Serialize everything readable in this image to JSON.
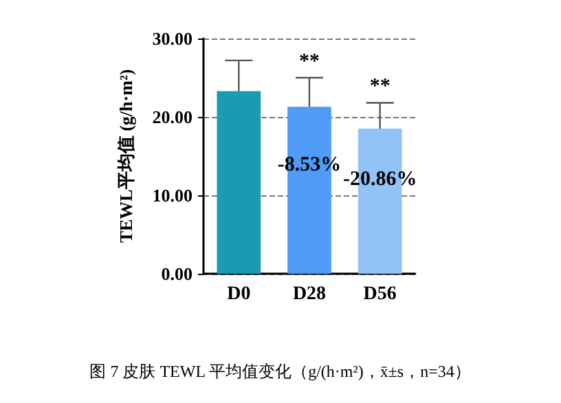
{
  "chart_data": {
    "type": "bar",
    "ylabel": "TEWL平均值 (g/h·m²)",
    "categories": [
      "D0",
      "D28",
      "D56"
    ],
    "values": [
      23.3,
      21.3,
      18.5
    ],
    "colors": [
      "#1a9bb1",
      "#4f9bf7",
      "#93c2f6"
    ],
    "errors": [
      3.9,
      3.7,
      3.3
    ],
    "ylim": [
      0,
      30
    ],
    "yticks": [
      {
        "value": 0,
        "label": "0.00"
      },
      {
        "value": 10,
        "label": "10.00"
      },
      {
        "value": 20,
        "label": "20.00"
      },
      {
        "value": 30,
        "label": "30.00"
      }
    ],
    "grid": "y",
    "annotations": [
      "**",
      "**",
      "-8.53%",
      "-20.86%",
      "图 7 皮肤 TEWL 平均值变化（g/(h·m²)，x̄±s，n=34）"
    ]
  }
}
